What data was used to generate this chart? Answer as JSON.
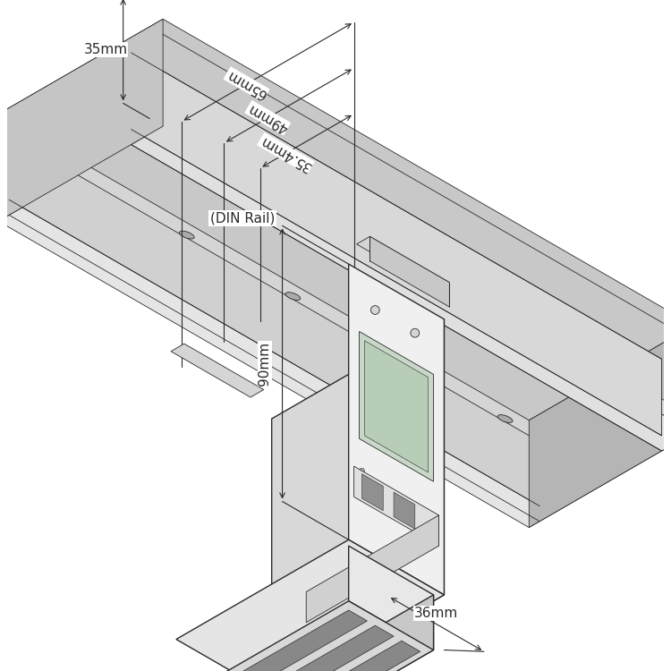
{
  "bg_color": "#ffffff",
  "line_color": "#2a2a2a",
  "lw_main": 1.0,
  "lw_thin": 0.6,
  "lw_dim": 0.8,
  "face_top": "#e0e0e0",
  "face_front": "#f0f0f0",
  "face_right": "#d0d0d0",
  "face_dark": "#c0c0c0",
  "face_rail_top": "#e8e8e8",
  "face_rail_front": "#d8d8d8",
  "face_rail_side": "#c8c8c8",
  "dim_36mm": "36mm",
  "dim_90mm": "90mm",
  "dim_35mm": "35mm",
  "dim_354mm": "35.4mm",
  "dim_49mm": "49mm",
  "dim_65mm": "65mm",
  "label_din": "(DIN Rail)",
  "fontsize": 11,
  "figsize": [
    7.5,
    7.5
  ],
  "dpi": 100
}
